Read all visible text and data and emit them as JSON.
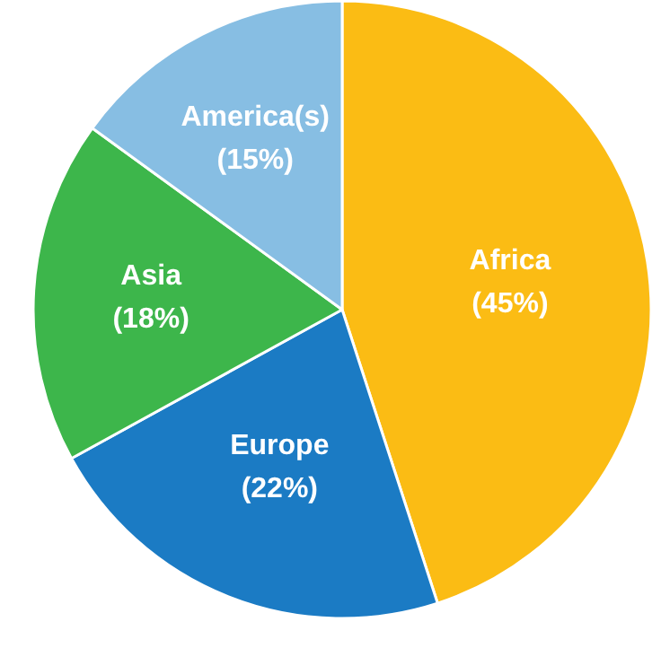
{
  "chart_data": {
    "type": "pie",
    "categories": [
      "Africa",
      "Europe",
      "Asia",
      "America(s)"
    ],
    "values": [
      45,
      22,
      18,
      15
    ],
    "colors": [
      "#fbbc14",
      "#1b7bc4",
      "#3db64b",
      "#87bee3"
    ],
    "value_labels": [
      "(45%)",
      "(22%)",
      "(18%)",
      "(15%)"
    ]
  }
}
